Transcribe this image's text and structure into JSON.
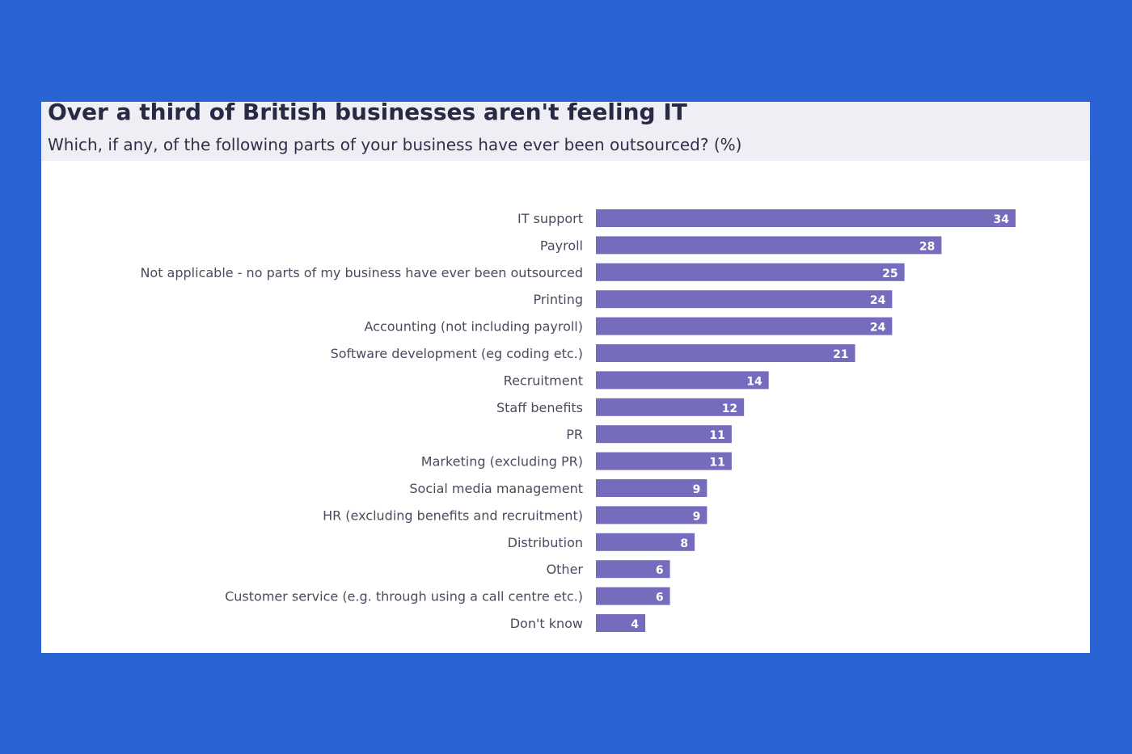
{
  "title": "Over a third of British businesses aren't feeling IT",
  "subtitle": "Which, if any, of the following parts of your business have ever been outsourced? (%)",
  "colors": {
    "background": "#2a63d4",
    "bar": "#756cbd",
    "header": "#efeef5"
  },
  "chart_data": {
    "type": "bar",
    "orientation": "horizontal",
    "categories": [
      "IT support",
      "Payroll",
      "Not applicable - no parts of my business have ever been outsourced",
      "Printing",
      "Accounting (not including payroll)",
      "Software development (eg coding etc.)",
      "Recruitment",
      "Staff benefits",
      "PR",
      "Marketing (excluding PR)",
      "Social media management",
      "HR (excluding benefits and recruitment)",
      "Distribution",
      "Other",
      "Customer service (e.g. through using a call centre etc.)",
      "Don't know"
    ],
    "values": [
      34,
      28,
      25,
      24,
      24,
      21,
      14,
      12,
      11,
      11,
      9,
      9,
      8,
      6,
      6,
      4
    ],
    "data_labels": true,
    "xlim": [
      0,
      34
    ],
    "grid": false,
    "legend": "none"
  }
}
